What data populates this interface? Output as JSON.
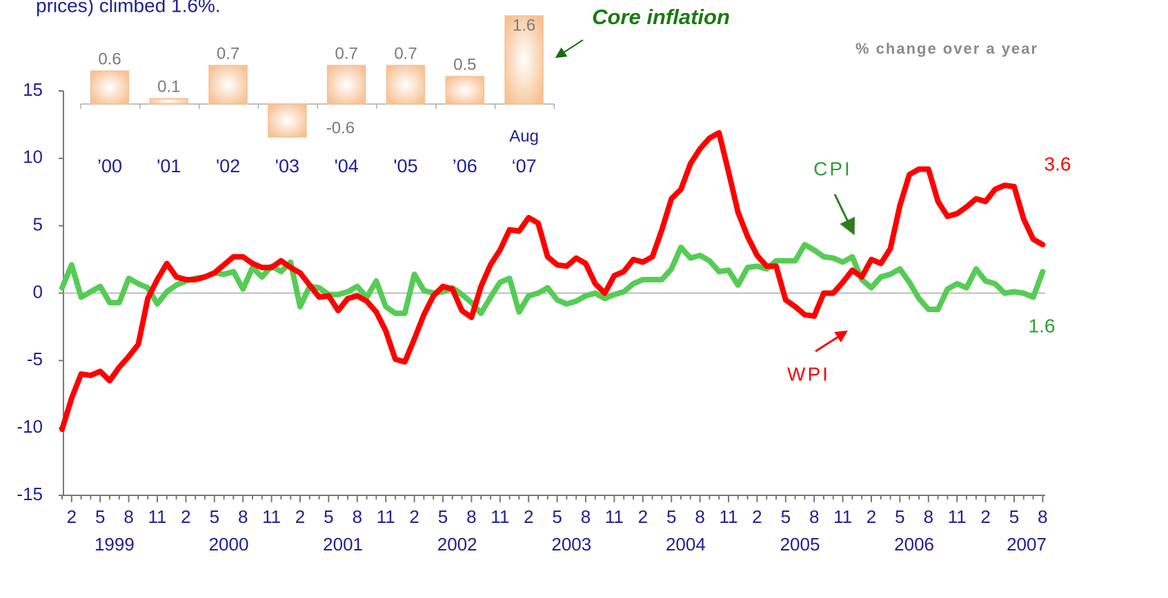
{
  "caption": "prices) climbed 1.6%.",
  "chart_data": [
    {
      "type": "line",
      "subtitle": "% change over a year",
      "ylim": [
        -15,
        15
      ],
      "yticks": [
        -15,
        -10,
        -5,
        0,
        5,
        10,
        15
      ],
      "zero_line": true,
      "categories": [
        null,
        2,
        null,
        null,
        5,
        null,
        null,
        8,
        null,
        null,
        11,
        null,
        null,
        2,
        null,
        null,
        5,
        null,
        null,
        8,
        null,
        null,
        11,
        null,
        null,
        2,
        null,
        null,
        5,
        null,
        null,
        8,
        null,
        null,
        11,
        null,
        null,
        2,
        null,
        null,
        5,
        null,
        null,
        8,
        null,
        null,
        11,
        null,
        null,
        2,
        null,
        null,
        5,
        null,
        null,
        8,
        null,
        null,
        11,
        null,
        null,
        2,
        null,
        null,
        5,
        null,
        null,
        8,
        null,
        null,
        11,
        null,
        null,
        2,
        null,
        null,
        5,
        null,
        null,
        8,
        null,
        null,
        11,
        null,
        null,
        2,
        null,
        null,
        5,
        null,
        null,
        8,
        null,
        null,
        11,
        null,
        null,
        2,
        null,
        null,
        5,
        null,
        null,
        8
      ],
      "x_groups": [
        "1999",
        "2000",
        "2001",
        "2002",
        "2003",
        "2004",
        "2005",
        "2006",
        "2007"
      ],
      "series": [
        {
          "name": "CPI",
          "color": "#55cc55",
          "label_color": "#2e9e2e",
          "values": [
            0.4,
            2.1,
            -0.3,
            0.1,
            0.5,
            -0.7,
            -0.7,
            1.1,
            0.7,
            0.4,
            -0.8,
            0.1,
            0.6,
            0.9,
            1.1,
            1.2,
            1.5,
            1.4,
            1.6,
            0.3,
            1.9,
            1.2,
            2.0,
            1.6,
            2.3,
            -1.0,
            0.5,
            0.4,
            -0.1,
            -0.1,
            0.1,
            0.5,
            -0.3,
            0.9,
            -1.0,
            -1.5,
            -1.5,
            1.4,
            0.2,
            0.0,
            0.1,
            0.4,
            -0.1,
            -0.7,
            -1.5,
            -0.3,
            0.8,
            1.1,
            -1.4,
            -0.2,
            0.0,
            0.4,
            -0.5,
            -0.8,
            -0.6,
            -0.2,
            0.0,
            -0.4,
            -0.1,
            0.1,
            0.7,
            1.0,
            1.0,
            1.0,
            1.8,
            3.4,
            2.6,
            2.8,
            2.4,
            1.6,
            1.7,
            0.6,
            1.9,
            2.0,
            1.8,
            2.4,
            2.4,
            2.4,
            3.6,
            3.2,
            2.7,
            2.6,
            2.3,
            2.7,
            1.0,
            0.4,
            1.2,
            1.4,
            1.8,
            0.8,
            -0.4,
            -1.2,
            -1.2,
            0.3,
            0.7,
            0.4,
            1.8,
            0.9,
            0.7,
            0.0,
            0.1,
            0.0,
            -0.3,
            1.6
          ]
        },
        {
          "name": "WPI",
          "color": "#ff0000",
          "label_color": "#ff0000",
          "values": [
            -10.1,
            -7.8,
            -6.0,
            -6.1,
            -5.8,
            -6.5,
            -5.5,
            -4.7,
            -3.8,
            -0.4,
            1.0,
            2.2,
            1.2,
            1.0,
            1.0,
            1.2,
            1.5,
            2.1,
            2.7,
            2.7,
            2.2,
            1.9,
            1.9,
            2.4,
            1.9,
            1.5,
            0.6,
            -0.3,
            -0.2,
            -1.3,
            -0.4,
            -0.2,
            -0.6,
            -1.4,
            -2.8,
            -4.9,
            -5.1,
            -3.4,
            -1.6,
            -0.2,
            0.5,
            0.3,
            -1.3,
            -1.8,
            0.5,
            2.1,
            3.2,
            4.7,
            4.6,
            5.6,
            5.2,
            2.7,
            2.1,
            2.0,
            2.6,
            2.2,
            0.7,
            0.0,
            1.3,
            1.6,
            2.5,
            2.3,
            2.7,
            4.7,
            7.0,
            7.7,
            9.6,
            10.7,
            11.5,
            11.9,
            9.0,
            6.0,
            4.2,
            2.8,
            2.0,
            2.0,
            -0.5,
            -1.0,
            -1.6,
            -1.7,
            0.0,
            0.0,
            0.8,
            1.7,
            1.2,
            2.5,
            2.2,
            3.3,
            6.5,
            8.8,
            9.2,
            9.2,
            6.8,
            5.7,
            5.9,
            6.4,
            7.0,
            6.8,
            7.7,
            8.0,
            7.9,
            5.5,
            4.0,
            3.6
          ]
        }
      ]
    },
    {
      "type": "bar",
      "title": "Core inflation",
      "categories": [
        "’00",
        "'01",
        "'02",
        "'03",
        "'04",
        "'05",
        "’06",
        "‘07"
      ],
      "category_note": "Aug",
      "values": [
        0.6,
        0.1,
        0.7,
        -0.6,
        0.7,
        0.7,
        0.5,
        1.6
      ],
      "color": "#f7c193"
    }
  ]
}
